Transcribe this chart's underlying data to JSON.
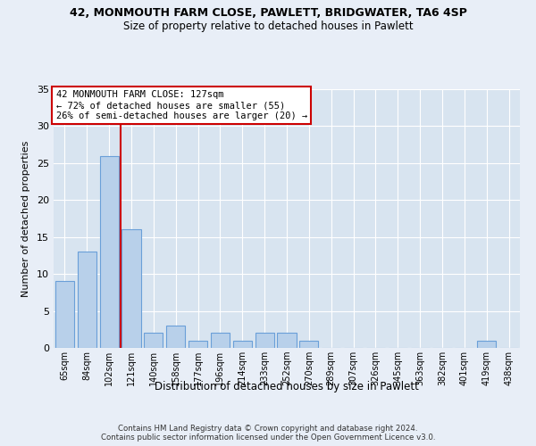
{
  "title_line1": "42, MONMOUTH FARM CLOSE, PAWLETT, BRIDGWATER, TA6 4SP",
  "title_line2": "Size of property relative to detached houses in Pawlett",
  "xlabel": "Distribution of detached houses by size in Pawlett",
  "ylabel": "Number of detached properties",
  "categories": [
    "65sqm",
    "84sqm",
    "102sqm",
    "121sqm",
    "140sqm",
    "158sqm",
    "177sqm",
    "196sqm",
    "214sqm",
    "233sqm",
    "252sqm",
    "270sqm",
    "289sqm",
    "307sqm",
    "326sqm",
    "345sqm",
    "363sqm",
    "382sqm",
    "401sqm",
    "419sqm",
    "438sqm"
  ],
  "values": [
    9,
    13,
    26,
    16,
    2,
    3,
    1,
    2,
    1,
    2,
    2,
    1,
    0,
    0,
    0,
    0,
    0,
    0,
    0,
    1,
    0
  ],
  "bar_color": "#b8d0ea",
  "bar_edge_color": "#6a9fd8",
  "vline_index": 3,
  "vline_color": "#cc0000",
  "annotation_line1": "42 MONMOUTH FARM CLOSE: 127sqm",
  "annotation_line2": "← 72% of detached houses are smaller (55)",
  "annotation_line3": "26% of semi-detached houses are larger (20) →",
  "ylim_max": 35,
  "yticks": [
    0,
    5,
    10,
    15,
    20,
    25,
    30,
    35
  ],
  "fig_bg_color": "#e8eef7",
  "plot_bg_color": "#d8e4f0",
  "grid_color": "#ffffff",
  "footnote_line1": "Contains HM Land Registry data © Crown copyright and database right 2024.",
  "footnote_line2": "Contains public sector information licensed under the Open Government Licence v3.0."
}
